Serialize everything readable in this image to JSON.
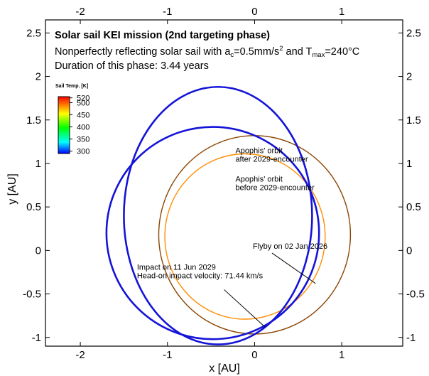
{
  "chart_data": {
    "type": "line",
    "title": "Solar sail KEI mission (2nd targeting phase)",
    "subtitle": {
      "pre": "Nonperfectly reflecting solar sail with a",
      "sub1": "c",
      "mid": "=0.5mm/s",
      "sup": "2",
      "and": " and T",
      "sub2": "max",
      "post": "=240°C"
    },
    "duration": "Duration of this phase: 3.44 years",
    "xlabel": "x [AU]",
    "ylabel": "y [AU]",
    "xlim": [
      -2.4,
      1.7
    ],
    "ylim": [
      -1.1,
      2.65
    ],
    "x_ticks": [
      -2,
      -1,
      0,
      1
    ],
    "y_ticks": [
      -1,
      -0.5,
      0,
      0.5,
      1,
      1.5,
      2,
      2.5
    ],
    "x_tick_labels": [
      "-2",
      "-1",
      "0",
      "1"
    ],
    "y_tick_labels": [
      "-1",
      "-0.5",
      "0",
      "0.5",
      "1",
      "1.5",
      "2",
      "2.5"
    ],
    "colorbar": {
      "title": "Sail Temp. [K]",
      "ticks": [
        "520",
        "500",
        "450",
        "400",
        "350",
        "300"
      ],
      "tick_values": [
        520,
        500,
        450,
        400,
        350,
        300
      ],
      "range": [
        290,
        525
      ]
    },
    "orbits": [
      {
        "label_lines": [
          "Apophis' orbit",
          "after 2029-encounter"
        ],
        "color": "#8b4500",
        "cx": 0,
        "cy": 0.18,
        "rx": 1.1,
        "ry": 1.14
      },
      {
        "label_lines": [
          "Apophis' orbit",
          "before 2029-encounter"
        ],
        "color": "#ff8c00",
        "cx": -0.11,
        "cy": 0.16,
        "rx": 0.92,
        "ry": 0.95
      }
    ],
    "trajectory": {
      "color": "#1414d8",
      "loops": [
        {
          "cx": -0.42,
          "cy": 0.4,
          "rx": 1.08,
          "ry": 1.48,
          "rot": 0
        },
        {
          "cx": -0.48,
          "cy": 0.2,
          "rx": 1.22,
          "ry": 1.22,
          "rot": 0
        }
      ]
    },
    "annotations": [
      {
        "lines": [
          "Flyby on 02 Jan 2026"
        ],
        "point": [
          0.7,
          -0.38
        ],
        "text_at": [
          -0.02,
          0.02
        ]
      },
      {
        "lines": [
          "Impact on 11 Jun 2029",
          "Head-on impact velocity: 71.44 km/s"
        ],
        "point": [
          0.12,
          -0.88
        ],
        "text_at": [
          -1.35,
          -0.22
        ]
      }
    ],
    "grid": false,
    "legend": "none"
  }
}
